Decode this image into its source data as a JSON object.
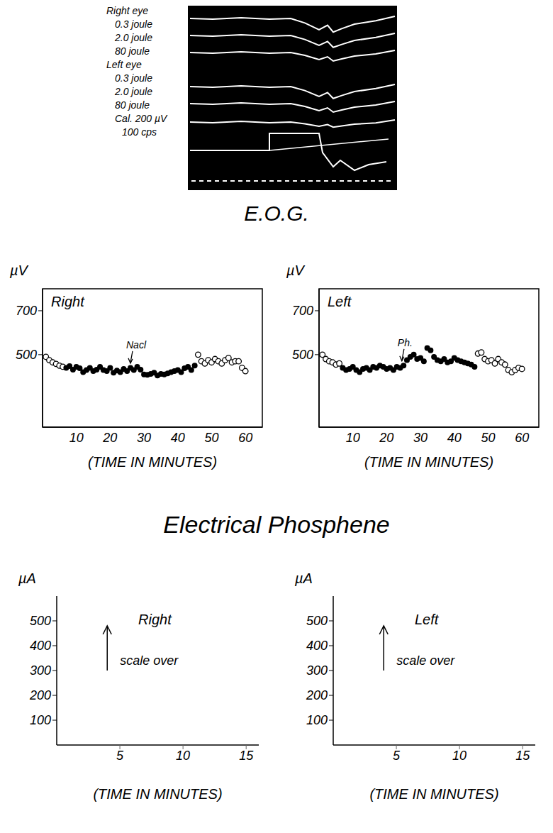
{
  "oscillogram": {
    "panels": [
      {
        "eye": "Right eye",
        "traces": [
          "0.3 joule",
          "2.0 joule",
          "80 joule"
        ]
      },
      {
        "eye": "Left eye",
        "traces": [
          "0.3 joule",
          "2.0 joule",
          "80 joule"
        ]
      }
    ],
    "calibration": [
      "Cal. 200 µV",
      "100 cps"
    ]
  },
  "headings": [
    "E.O.G.",
    "Electrical Phosphene"
  ],
  "chart_data": [
    {
      "type": "scatter",
      "title": "Right",
      "y_label": "µV",
      "x_label": "(TIME IN MINUTES)",
      "xlim": [
        0,
        65
      ],
      "xticks": [
        10,
        20,
        30,
        40,
        50,
        60
      ],
      "ylim": [
        170,
        800
      ],
      "yticks": [
        500,
        700
      ],
      "grid": false,
      "series": [
        {
          "marker": "open circle",
          "x": [
            1,
            2,
            3,
            4,
            5,
            6
          ],
          "values": [
            490,
            475,
            465,
            458,
            450,
            445
          ]
        },
        {
          "marker": "filled circle",
          "x": [
            7,
            8,
            9,
            10,
            11,
            12,
            13,
            14,
            15,
            16,
            17,
            18,
            19,
            20,
            21,
            22,
            23,
            24,
            25,
            26,
            27,
            28,
            29,
            30,
            31,
            32,
            33,
            34,
            35,
            36,
            37,
            38,
            39,
            40,
            41,
            42,
            43,
            44,
            45
          ],
          "values": [
            440,
            448,
            432,
            445,
            438,
            420,
            430,
            440,
            425,
            432,
            445,
            430,
            425,
            440,
            418,
            428,
            420,
            435,
            425,
            440,
            430,
            445,
            432,
            410,
            408,
            412,
            418,
            405,
            412,
            410,
            415,
            420,
            425,
            430,
            420,
            438,
            445,
            430,
            450
          ]
        },
        {
          "marker": "open circle",
          "x": [
            46,
            47,
            48,
            49,
            50,
            51,
            52,
            53,
            54,
            55,
            56,
            57,
            58,
            59,
            60
          ],
          "values": [
            500,
            470,
            460,
            475,
            465,
            480,
            470,
            460,
            475,
            485,
            465,
            470,
            470,
            440,
            425
          ]
        }
      ],
      "annotations": [
        {
          "text": "Nacl",
          "x": 26,
          "y": 445
        }
      ]
    },
    {
      "type": "scatter",
      "title": "Left",
      "y_label": "µV",
      "x_label": "(TIME IN MINUTES)",
      "xlim": [
        0,
        65
      ],
      "xticks": [
        10,
        20,
        30,
        40,
        50,
        60
      ],
      "ylim": [
        170,
        800
      ],
      "yticks": [
        500,
        700
      ],
      "grid": false,
      "series": [
        {
          "marker": "open circle",
          "x": [
            1,
            2,
            3,
            4,
            5,
            6
          ],
          "values": [
            500,
            480,
            470,
            465,
            455,
            460
          ]
        },
        {
          "marker": "filled circle",
          "x": [
            7,
            8,
            9,
            10,
            11,
            12,
            13,
            14,
            15,
            16,
            17,
            18,
            19,
            20,
            21,
            22,
            23,
            24,
            25,
            26,
            27,
            28,
            29,
            30,
            31,
            32,
            33,
            34,
            35,
            36,
            37,
            38,
            39,
            40,
            41,
            42,
            43,
            44,
            45,
            46
          ],
          "values": [
            440,
            430,
            435,
            445,
            430,
            420,
            435,
            440,
            430,
            445,
            440,
            450,
            445,
            435,
            440,
            430,
            445,
            440,
            450,
            475,
            490,
            500,
            480,
            485,
            470,
            530,
            520,
            490,
            475,
            470,
            480,
            465,
            470,
            485,
            475,
            470,
            465,
            460,
            455,
            445
          ]
        },
        {
          "marker": "open circle",
          "x": [
            47,
            48,
            49,
            50,
            51,
            52,
            53,
            54,
            55,
            56,
            57,
            58,
            59,
            60
          ],
          "values": [
            505,
            510,
            480,
            470,
            475,
            460,
            480,
            465,
            455,
            430,
            420,
            430,
            440,
            435
          ]
        }
      ],
      "annotations": [
        {
          "text": "Ph.",
          "x": 24.5,
          "y": 455
        }
      ]
    },
    {
      "type": "scatter",
      "title": "Right",
      "y_label": "µA",
      "x_label": "(TIME IN MINUTES)",
      "xlim": [
        0,
        16
      ],
      "xticks": [
        5,
        10,
        15
      ],
      "ylim": [
        0,
        600
      ],
      "yticks": [
        100,
        200,
        300,
        400,
        500
      ],
      "grid": false,
      "series": [],
      "annotations": [
        {
          "text": "scale over",
          "x": 4,
          "y": 300,
          "y_end": 480
        }
      ]
    },
    {
      "type": "scatter",
      "title": "Left",
      "y_label": "µA",
      "x_label": "(TIME IN MINUTES)",
      "xlim": [
        0,
        16
      ],
      "xticks": [
        5,
        10,
        15
      ],
      "ylim": [
        0,
        600
      ],
      "yticks": [
        100,
        200,
        300,
        400,
        500
      ],
      "grid": false,
      "series": [],
      "annotations": [
        {
          "text": "scale over",
          "x": 4,
          "y": 300,
          "y_end": 480
        }
      ]
    }
  ]
}
